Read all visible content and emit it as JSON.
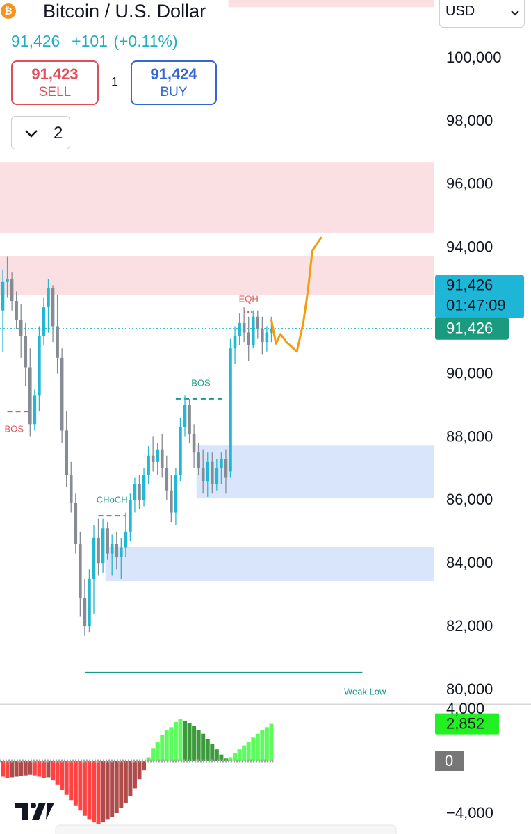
{
  "header": {
    "symbol": "Bitcoin / U.S. Dollar",
    "price": "91,426",
    "change": "+101",
    "change_pct": "(+0.11%)",
    "sell_price": "91,423",
    "sell_label": "SELL",
    "spread": "1",
    "buy_price": "91,424",
    "buy_label": "BUY",
    "dropdown": "2",
    "currency": "USD"
  },
  "chart_data": [
    {
      "type": "candlestick",
      "open": [
        92000,
        92900,
        93000,
        92300,
        91700,
        91200,
        90200,
        88400,
        89300,
        91200,
        92100,
        92700,
        91500,
        90500,
        88200,
        86800,
        85900,
        84600,
        82900,
        82000,
        83500,
        84800,
        84000,
        85100,
        84300,
        84600,
        84200,
        84500,
        85000,
        86000,
        86500,
        86000,
        86800,
        87400,
        87200,
        87600,
        87000,
        86300,
        85600,
        86800,
        88300,
        89000,
        88100,
        87500,
        87000,
        86600,
        87200,
        86500,
        87000,
        87300,
        86900,
        90800,
        91200,
        91600,
        91300,
        90900,
        91800,
        91400,
        91000,
        91300
      ],
      "high": [
        93300,
        93700,
        93200,
        92600,
        92200,
        91600,
        90800,
        89500,
        91500,
        92400,
        93000,
        92800,
        92500,
        90800,
        88800,
        87200,
        86200,
        85000,
        83500,
        83800,
        85200,
        85400,
        85400,
        85300,
        84900,
        85000,
        84800,
        85600,
        86200,
        86700,
        86800,
        87000,
        87700,
        88000,
        87800,
        88100,
        87400,
        86800,
        87000,
        88600,
        89300,
        89200,
        88400,
        87800,
        87600,
        87500,
        87500,
        87300,
        87500,
        87600,
        91100,
        91500,
        91900,
        92100,
        91800,
        92000,
        92000,
        91800,
        91500,
        91800
      ],
      "low": [
        90700,
        92400,
        92000,
        91400,
        90500,
        89600,
        88000,
        88200,
        88800,
        90900,
        91300,
        91000,
        90000,
        87800,
        86400,
        85600,
        84300,
        82300,
        81700,
        81800,
        82400,
        83600,
        83700,
        84100,
        83600,
        83800,
        83500,
        84200,
        84700,
        85600,
        85700,
        85800,
        86500,
        86900,
        86800,
        86700,
        86000,
        85300,
        85200,
        86600,
        88000,
        87800,
        87000,
        86800,
        86200,
        86100,
        86200,
        86300,
        86500,
        86200,
        86700,
        90300,
        90900,
        91000,
        90400,
        90800,
        91100,
        90600,
        90700,
        91000
      ],
      "close": [
        92900,
        93000,
        92300,
        91700,
        91200,
        90200,
        88400,
        89300,
        91200,
        92100,
        92700,
        91500,
        90500,
        88200,
        86800,
        85900,
        84600,
        82900,
        82000,
        83500,
        84800,
        84000,
        85100,
        84300,
        84600,
        84200,
        84500,
        85000,
        86000,
        86500,
        86000,
        86800,
        87400,
        87200,
        87600,
        87000,
        86300,
        85600,
        86800,
        88300,
        89000,
        88100,
        87500,
        87000,
        86600,
        87200,
        86500,
        87000,
        87300,
        86700,
        90800,
        91200,
        91600,
        91300,
        90900,
        91800,
        91400,
        91000,
        91300,
        91426
      ],
      "up_color": "#22b8d4",
      "down_color": "#878b94",
      "ylim": [
        79560,
        101830
      ],
      "yticks": [
        {
          "value": 80000,
          "label": "80,000"
        },
        {
          "value": 82000,
          "label": "82,000"
        },
        {
          "value": 84000,
          "label": "84,000"
        },
        {
          "value": 86000,
          "label": "86,000"
        },
        {
          "value": 88000,
          "label": "88,000"
        },
        {
          "value": 90000,
          "label": "90,000"
        },
        {
          "value": 92000,
          "label": "92,000"
        },
        {
          "value": 94000,
          "label": "94,000"
        },
        {
          "value": 96000,
          "label": "96,000"
        },
        {
          "value": 98000,
          "label": "98,000"
        },
        {
          "value": 100000,
          "label": "100,000"
        }
      ],
      "zones": [
        {
          "top": 102000,
          "bottom": 101600,
          "start": 50,
          "color": "#fbe0e3"
        },
        {
          "top": 96700,
          "bottom": 94460,
          "start": 0,
          "color": "#fbe0e3"
        },
        {
          "top": 93730,
          "bottom": 92480,
          "start": 0,
          "color": "#fbe0e3"
        },
        {
          "top": 87720,
          "bottom": 86050,
          "start": 43,
          "color": "#d9e5fb"
        },
        {
          "top": 84510,
          "bottom": 83430,
          "start": 23,
          "color": "#d9e5fb"
        }
      ],
      "structures": [
        {
          "label": "BOS",
          "level": 88800,
          "from": 1,
          "to": 6,
          "color": "#e0505a",
          "style": "dashed"
        },
        {
          "label": "CHoCH",
          "level": 85500,
          "from": 21,
          "to": 27,
          "color": "#16998a",
          "style": "dashed"
        },
        {
          "label": "BOS",
          "level": 89200,
          "from": 38,
          "to": 49,
          "color": "#16998a",
          "style": "dashed"
        },
        {
          "label": "EQH",
          "level": 91950,
          "from": 53,
          "to": 55,
          "color": "#e0505a",
          "style": "dotted"
        },
        {
          "label": "Weak Low",
          "level": 80530,
          "from": 18,
          "to": 79,
          "color": "#16998a",
          "style": "solid"
        }
      ],
      "projection": {
        "color": "#f39c12",
        "x": [
          59,
          60,
          61,
          62.3,
          64.6,
          66,
          67,
          68,
          69.9
        ],
        "values": [
          91700,
          90950,
          91250,
          91000,
          90700,
          91600,
          92600,
          93900,
          94300
        ]
      },
      "price_tags": [
        {
          "value": 91426,
          "label": "91,426",
          "timer": "01:47:09",
          "color": "#1eb6d6"
        },
        {
          "value": 91426,
          "label": "91,426",
          "color": "#1a9b80"
        }
      ]
    },
    {
      "type": "column",
      "values": [
        -1200,
        -1300,
        -1250,
        -1200,
        -1150,
        -1100,
        -1050,
        -1100,
        -1200,
        -1300,
        -1250,
        -1500,
        -1800,
        -2200,
        -2600,
        -3000,
        -3400,
        -3800,
        -4200,
        -4500,
        -4700,
        -4800,
        -4700,
        -4500,
        -4300,
        -4000,
        -3600,
        -3200,
        -2700,
        -2100,
        -1400,
        -700,
        300,
        1000,
        1500,
        2000,
        2400,
        2600,
        3000,
        3200,
        3100,
        2900,
        2700,
        2400,
        2100,
        1700,
        1300,
        900,
        500,
        200,
        300,
        600,
        900,
        1200,
        1500,
        1800,
        2100,
        2400,
        2600,
        2852
      ],
      "value_labels": [
        null,
        null,
        null,
        null,
        null,
        null,
        null,
        null,
        null,
        null,
        null,
        null,
        null,
        null,
        null,
        null,
        null,
        null,
        null,
        null,
        null,
        null,
        null,
        null,
        null,
        null,
        null,
        null,
        null,
        null,
        null,
        null,
        null,
        null,
        null,
        null,
        null,
        null,
        null,
        null,
        null,
        null,
        null,
        null,
        null,
        null,
        null,
        null,
        null,
        null,
        null,
        null,
        null,
        null,
        null,
        null,
        null,
        null,
        null,
        "2,852"
      ],
      "palette": {
        "pos_rising": "#5dfb5d",
        "pos_falling": "#3c9a3c",
        "neg_falling": "#ff4343",
        "neg_rising": "#b04b4b"
      },
      "label_color": "#22f022",
      "ylim": [
        -5600,
        4270
      ],
      "yticks": [
        {
          "value": 4000,
          "label": "4,000"
        },
        0,
        {
          "value": -4000,
          "label": "−4,000"
        }
      ]
    }
  ]
}
